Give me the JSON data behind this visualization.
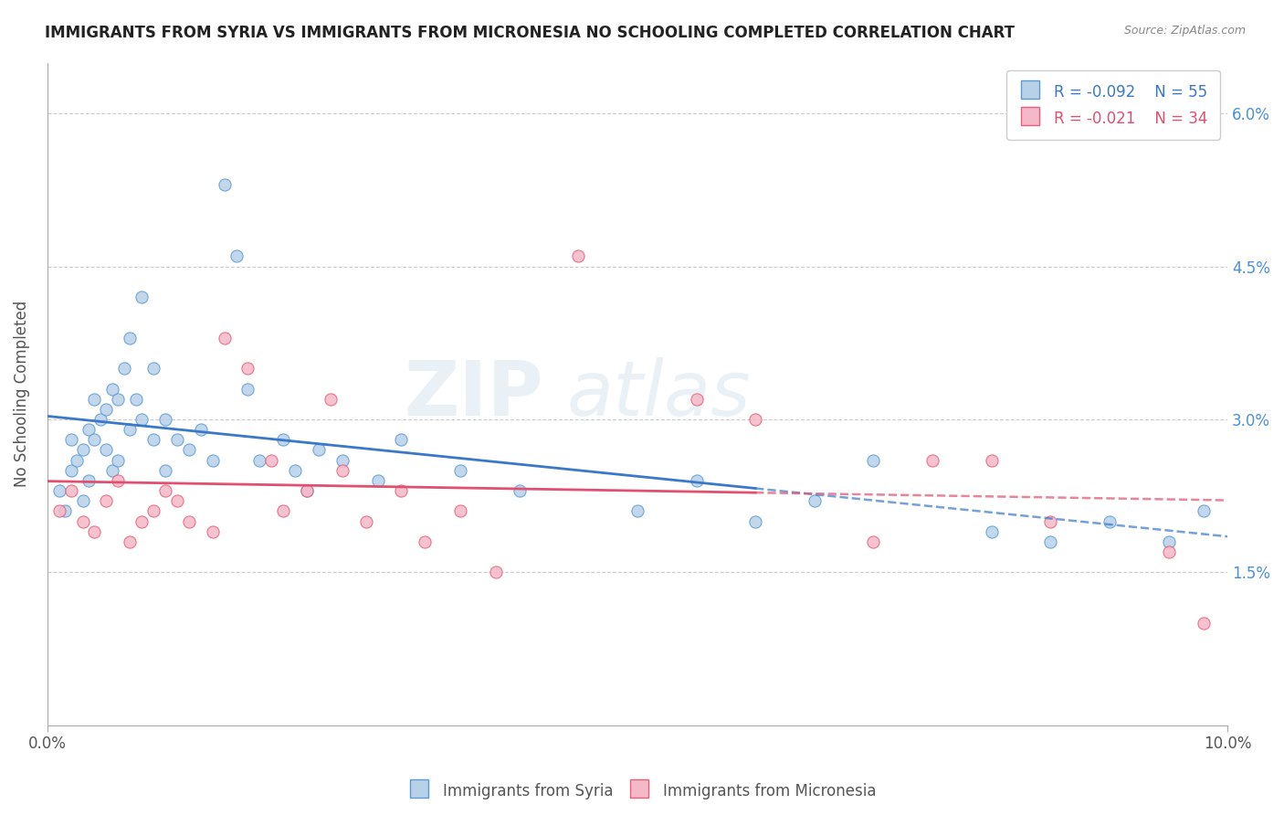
{
  "title": "IMMIGRANTS FROM SYRIA VS IMMIGRANTS FROM MICRONESIA NO SCHOOLING COMPLETED CORRELATION CHART",
  "source_text": "Source: ZipAtlas.com",
  "ylabel": "No Schooling Completed",
  "xlim": [
    0.0,
    10.0
  ],
  "ylim": [
    0.0,
    6.5
  ],
  "ytick_values": [
    1.5,
    3.0,
    4.5,
    6.0
  ],
  "legend_r1": "R = -0.092",
  "legend_n1": "N = 55",
  "legend_r2": "R = -0.021",
  "legend_n2": "N = 34",
  "blue_fill": "#b8d0e8",
  "pink_fill": "#f5b8c8",
  "blue_edge": "#5b9bd5",
  "pink_edge": "#e8607a",
  "blue_line": "#3a78c9",
  "pink_line": "#e05070",
  "syria_x": [
    0.1,
    0.15,
    0.2,
    0.2,
    0.25,
    0.3,
    0.3,
    0.35,
    0.35,
    0.4,
    0.4,
    0.45,
    0.5,
    0.5,
    0.55,
    0.55,
    0.6,
    0.6,
    0.65,
    0.7,
    0.7,
    0.75,
    0.8,
    0.8,
    0.9,
    0.9,
    1.0,
    1.0,
    1.1,
    1.2,
    1.3,
    1.4,
    1.5,
    1.6,
    1.7,
    1.8,
    2.0,
    2.1,
    2.2,
    2.3,
    2.5,
    2.8,
    3.0,
    3.5,
    4.0,
    5.0,
    5.5,
    6.0,
    6.5,
    7.0,
    8.0,
    8.5,
    9.0,
    9.5,
    9.8
  ],
  "syria_y": [
    2.3,
    2.1,
    2.5,
    2.8,
    2.6,
    2.2,
    2.7,
    2.9,
    2.4,
    3.2,
    2.8,
    3.0,
    3.1,
    2.7,
    3.3,
    2.5,
    3.2,
    2.6,
    3.5,
    3.8,
    2.9,
    3.2,
    4.2,
    3.0,
    3.5,
    2.8,
    3.0,
    2.5,
    2.8,
    2.7,
    2.9,
    2.6,
    5.3,
    4.6,
    3.3,
    2.6,
    2.8,
    2.5,
    2.3,
    2.7,
    2.6,
    2.4,
    2.8,
    2.5,
    2.3,
    2.1,
    2.4,
    2.0,
    2.2,
    2.6,
    1.9,
    1.8,
    2.0,
    1.8,
    2.1
  ],
  "micronesia_x": [
    0.1,
    0.2,
    0.3,
    0.4,
    0.5,
    0.6,
    0.7,
    0.8,
    0.9,
    1.0,
    1.1,
    1.2,
    1.4,
    1.5,
    1.7,
    1.9,
    2.0,
    2.2,
    2.4,
    2.5,
    2.7,
    3.0,
    3.2,
    3.5,
    3.8,
    4.5,
    5.5,
    6.0,
    7.0,
    7.5,
    8.0,
    8.5,
    9.5,
    9.8
  ],
  "micronesia_y": [
    2.1,
    2.3,
    2.0,
    1.9,
    2.2,
    2.4,
    1.8,
    2.0,
    2.1,
    2.3,
    2.2,
    2.0,
    1.9,
    3.8,
    3.5,
    2.6,
    2.1,
    2.3,
    3.2,
    2.5,
    2.0,
    2.3,
    1.8,
    2.1,
    1.5,
    4.6,
    3.2,
    3.0,
    1.8,
    2.6,
    2.6,
    2.0,
    1.7,
    1.0
  ]
}
